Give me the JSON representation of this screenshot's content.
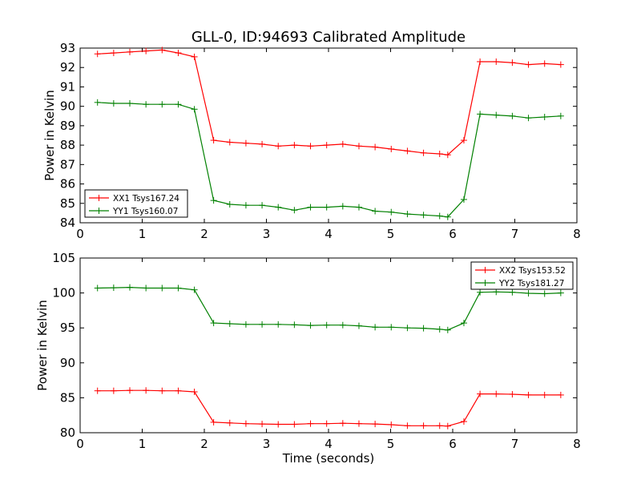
{
  "figure": {
    "title": "GLL-0, ID:94693 Calibrated Amplitude"
  },
  "chart_data": [
    {
      "type": "line",
      "title": "GLL-0, ID:94693 Calibrated Amplitude",
      "xlabel": "",
      "ylabel": "Power in Kelvin",
      "xlim": [
        0,
        8
      ],
      "ylim": [
        84,
        93
      ],
      "xticks": [
        "0",
        "1",
        "2",
        "3",
        "4",
        "5",
        "6",
        "7",
        "8"
      ],
      "yticks": [
        "84",
        "85",
        "86",
        "87",
        "88",
        "89",
        "90",
        "91",
        "92",
        "93"
      ],
      "grid": false,
      "legend_position": "lower-left",
      "x": [
        0.28,
        0.54,
        0.8,
        1.06,
        1.32,
        1.58,
        1.84,
        2.15,
        2.41,
        2.67,
        2.93,
        3.19,
        3.45,
        3.71,
        3.97,
        4.23,
        4.49,
        4.75,
        5.01,
        5.27,
        5.53,
        5.79,
        5.92,
        6.18,
        6.44,
        6.7,
        6.96,
        7.22,
        7.48,
        7.74
      ],
      "series": [
        {
          "name": "XX1 Tsys167.24",
          "color": "#ff0000",
          "values": [
            92.7,
            92.75,
            92.8,
            92.85,
            92.9,
            92.75,
            92.55,
            88.25,
            88.15,
            88.1,
            88.05,
            87.95,
            88.0,
            87.95,
            88.0,
            88.05,
            87.95,
            87.9,
            87.8,
            87.7,
            87.6,
            87.55,
            87.5,
            88.25,
            92.3,
            92.3,
            92.25,
            92.15,
            92.2,
            92.15
          ]
        },
        {
          "name": "YY1 Tsys160.07",
          "color": "#008000",
          "values": [
            90.2,
            90.15,
            90.15,
            90.1,
            90.1,
            90.1,
            89.85,
            85.15,
            84.95,
            84.9,
            84.9,
            84.8,
            84.65,
            84.8,
            84.8,
            84.85,
            84.8,
            84.6,
            84.55,
            84.45,
            84.4,
            84.35,
            84.3,
            85.2,
            89.6,
            89.55,
            89.5,
            89.4,
            89.45,
            89.5
          ]
        }
      ]
    },
    {
      "type": "line",
      "title": "",
      "xlabel": "Time (seconds)",
      "ylabel": "Power in Kelvin",
      "xlim": [
        0,
        8
      ],
      "ylim": [
        80,
        105
      ],
      "xticks": [
        "0",
        "1",
        "2",
        "3",
        "4",
        "5",
        "6",
        "7",
        "8"
      ],
      "yticks": [
        "80",
        "85",
        "90",
        "95",
        "100",
        "105"
      ],
      "grid": false,
      "legend_position": "upper-right",
      "x": [
        0.28,
        0.54,
        0.8,
        1.06,
        1.32,
        1.58,
        1.84,
        2.15,
        2.41,
        2.67,
        2.93,
        3.19,
        3.45,
        3.71,
        3.97,
        4.23,
        4.49,
        4.75,
        5.01,
        5.27,
        5.53,
        5.79,
        5.92,
        6.18,
        6.44,
        6.7,
        6.96,
        7.22,
        7.48,
        7.74
      ],
      "series": [
        {
          "name": "XX2 Tsys153.52",
          "color": "#ff0000",
          "values": [
            86.0,
            86.0,
            86.05,
            86.05,
            86.0,
            86.0,
            85.85,
            81.5,
            81.4,
            81.3,
            81.25,
            81.2,
            81.2,
            81.3,
            81.3,
            81.35,
            81.3,
            81.25,
            81.15,
            81.0,
            81.0,
            81.0,
            80.95,
            81.6,
            85.55,
            85.55,
            85.5,
            85.4,
            85.4,
            85.4
          ]
        },
        {
          "name": "YY2 Tsys181.27",
          "color": "#008000",
          "values": [
            100.7,
            100.75,
            100.8,
            100.7,
            100.7,
            100.7,
            100.45,
            95.7,
            95.6,
            95.5,
            95.5,
            95.5,
            95.45,
            95.35,
            95.4,
            95.4,
            95.3,
            95.1,
            95.1,
            95.0,
            94.95,
            94.8,
            94.7,
            95.7,
            100.1,
            100.15,
            100.1,
            99.95,
            99.9,
            100.0
          ]
        }
      ]
    }
  ]
}
